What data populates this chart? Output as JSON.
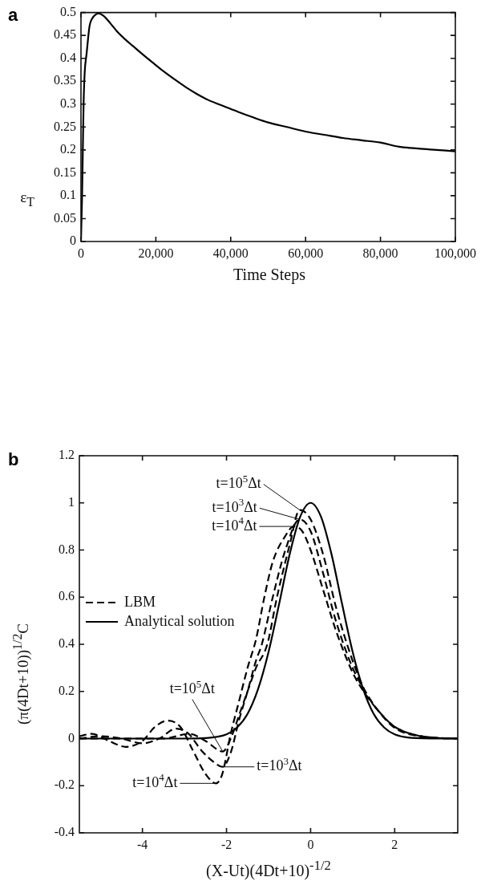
{
  "chart_data": [
    {
      "type": "line",
      "title": "a",
      "xlabel": "Time Steps",
      "ylabel": "ε$_{T}$",
      "x": [
        0,
        150,
        300,
        500,
        700,
        1000,
        1500,
        2300,
        3000,
        4000,
        4700,
        6000,
        8000,
        9600,
        12000,
        13700,
        16000,
        19400,
        22000,
        25000,
        28000,
        31000,
        34000,
        38600,
        42000,
        46000,
        50000,
        55000,
        60000,
        65000,
        70000,
        75000,
        80000,
        85000,
        90000,
        95000,
        100000
      ],
      "series": [
        {
          "color": "#000000",
          "values": [
            0,
            0.05,
            0.1,
            0.2,
            0.3,
            0.37,
            0.41,
            0.471,
            0.487,
            0.496,
            0.498,
            0.493,
            0.475,
            0.459,
            0.44,
            0.428,
            0.412,
            0.389,
            0.372,
            0.354,
            0.337,
            0.322,
            0.309,
            0.294,
            0.283,
            0.271,
            0.26,
            0.25,
            0.24,
            0.233,
            0.226,
            0.221,
            0.216,
            0.207,
            0.203,
            0.2,
            0.197
          ]
        }
      ],
      "xlim": [
        0,
        100000
      ],
      "xticks": [
        0,
        {
          "value": 20000,
          "label": "20,000"
        },
        {
          "value": 40000,
          "label": "40,000"
        },
        {
          "value": 60000,
          "label": "60,000"
        },
        {
          "value": 80000,
          "label": "80,000"
        },
        {
          "value": 100000,
          "label": "100,000"
        }
      ],
      "ylim": [
        0,
        0.5
      ],
      "yticks": [
        0,
        0.05,
        0.1,
        0.15,
        0.2,
        0.25,
        0.3,
        0.35,
        0.4,
        0.45,
        0.5
      ],
      "grid": false,
      "marker": "none",
      "line_style": "solid",
      "legend": false
    },
    {
      "type": "line",
      "title": "b",
      "xlabel": "(X-Ut)(4Dt+10)$^{-1/2}$",
      "ylabel": "(π(4Dt+10))$^{1/2}$C",
      "series": [
        {
          "name": "LBM",
          "color": "#000000",
          "line_style": "dashed",
          "x": [
            -5.5,
            -5.2,
            -4.8,
            -4.4,
            -4.0,
            -3.7,
            -3.4,
            -3.1,
            -2.8,
            -2.5,
            -2.25,
            -2.1,
            -1.9,
            -1.7,
            -1.5,
            -1.3,
            -1.1,
            -0.9,
            -0.6,
            -0.4,
            -0.2,
            0,
            0.3,
            0.6,
            1,
            1.3,
            1.6,
            2,
            2.5,
            3,
            3.5
          ],
          "values": [
            0.01,
            0.02,
            -0.01,
            -0.035,
            -0.01,
            0.05,
            0.076,
            0.05,
            -0.05,
            -0.15,
            -0.19,
            -0.15,
            0.02,
            0.16,
            0.3,
            0.42,
            0.6,
            0.75,
            0.86,
            0.9,
            0.88,
            0.8,
            0.63,
            0.46,
            0.28,
            0.19,
            0.12,
            0.05,
            0.015,
            0.003,
            0
          ]
        },
        {
          "color": "#000000",
          "line_style": "dashed",
          "x": [
            -5.5,
            -5,
            -4.5,
            -4,
            -3.6,
            -3.2,
            -2.9,
            -2.6,
            -2.3,
            -2.1,
            -1.9,
            -1.7,
            -1.5,
            -1.3,
            -1.16,
            -0.9,
            -0.6,
            -0.26,
            0,
            0.3,
            0.6,
            1,
            1.3,
            1.6,
            2,
            2.5,
            3,
            3.5
          ],
          "values": [
            0,
            0.01,
            0,
            -0.02,
            0,
            0.042,
            0.02,
            -0.05,
            -0.1,
            -0.12,
            -0.06,
            0.08,
            0.2,
            0.33,
            0.4,
            0.6,
            0.8,
            0.93,
            0.88,
            0.7,
            0.5,
            0.3,
            0.2,
            0.12,
            0.05,
            0.015,
            0.003,
            0
          ]
        },
        {
          "color": "#000000",
          "line_style": "dashed",
          "x": [
            -5.5,
            -4.5,
            -3.5,
            -2.88,
            -2.5,
            -2.09,
            -1.9,
            -1.7,
            -1.5,
            -1.3,
            -1.03,
            -0.8,
            -0.5,
            -0.26,
            0,
            0.3,
            0.6,
            1,
            1.3,
            1.6,
            2,
            2.5,
            3,
            3.5
          ],
          "values": [
            0,
            0,
            0,
            0.02,
            -0.01,
            -0.055,
            0,
            0.1,
            0.2,
            0.3,
            0.4,
            0.6,
            0.82,
            0.97,
            0.93,
            0.78,
            0.56,
            0.33,
            0.2,
            0.12,
            0.045,
            0.012,
            0.003,
            0
          ]
        },
        {
          "name": "Analytical solution",
          "color": "#000000",
          "line_style": "solid",
          "x": [
            -5.5,
            -3,
            -2.5,
            -2,
            -1.75,
            -1.5,
            -1.25,
            -1,
            -0.75,
            -0.5,
            -0.25,
            0,
            0.25,
            0.5,
            0.75,
            1,
            1.25,
            1.5,
            1.75,
            2,
            2.5,
            3.5
          ],
          "values": [
            0,
            0,
            0.002,
            0.018,
            0.047,
            0.105,
            0.21,
            0.368,
            0.57,
            0.78,
            0.94,
            1,
            0.94,
            0.78,
            0.57,
            0.368,
            0.21,
            0.105,
            0.047,
            0.018,
            0.002,
            0
          ]
        }
      ],
      "annotations": [
        {
          "text": "t=10$^{5}$Δt",
          "x": -0.26,
          "y": 0.97
        },
        {
          "text": "t=10$^{3}$Δt",
          "x": -0.26,
          "y": 0.93
        },
        {
          "text": "t=10$^{4}$Δt",
          "x": -0.4,
          "y": 0.9
        },
        {
          "text": "t=10$^{5}$Δt",
          "x": -2.09,
          "y": -0.055
        },
        {
          "text": "t=10$^{3}$Δt",
          "x": -2.1,
          "y": -0.12
        },
        {
          "text": "t=10$^{4}$Δt",
          "x": -2.25,
          "y": -0.19
        }
      ],
      "xlim": [
        -5.5,
        3.5
      ],
      "xticks": [
        -4,
        -2,
        0,
        2
      ],
      "ylim": [
        -0.4,
        1.2
      ],
      "yticks": [
        -0.4,
        -0.2,
        0,
        0.2,
        0.4,
        0.6,
        0.8,
        1,
        1.2
      ],
      "grid": false,
      "marker": "none",
      "legend": "left"
    }
  ]
}
